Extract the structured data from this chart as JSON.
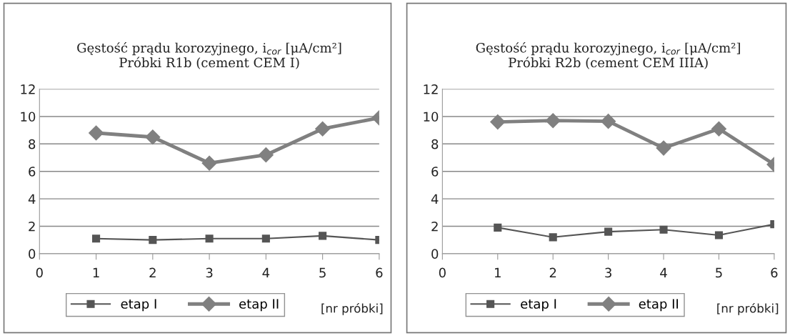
{
  "chart_data": [
    {
      "type": "line",
      "title": "Gęstość prądu korozyjnego, i$_{cor}$ [μA/cm²]\nPróbki R1b (cement CEM I)",
      "xlabel": "[nr próbki]",
      "x": [
        1,
        2,
        3,
        4,
        5,
        6
      ],
      "xlim": [
        0,
        6
      ],
      "xticks": [
        0,
        1,
        2,
        3,
        4,
        5,
        6
      ],
      "ylim": [
        0,
        12
      ],
      "yticks": [
        0,
        2,
        4,
        6,
        8,
        10,
        12
      ],
      "grid": "y",
      "legend": "bottom",
      "series": [
        {
          "name": "etap I",
          "color": "#555555",
          "marker": "square",
          "values": [
            1.1,
            1.0,
            1.1,
            1.1,
            1.3,
            1.0
          ]
        },
        {
          "name": "etap II",
          "color": "#808080",
          "marker": "diamond",
          "values": [
            8.8,
            8.5,
            6.6,
            7.2,
            9.1,
            9.9
          ]
        }
      ]
    },
    {
      "type": "line",
      "title": "Gęstość prądu korozyjnego, i$_{cor}$ [μA/cm²]\nPróbki R2b (cement CEM IIIA)",
      "xlabel": "[nr próbki]",
      "x": [
        1,
        2,
        3,
        4,
        5,
        6
      ],
      "xlim": [
        0,
        6
      ],
      "xticks": [
        0,
        1,
        2,
        3,
        4,
        5,
        6
      ],
      "ylim": [
        0,
        12
      ],
      "yticks": [
        0,
        2,
        4,
        6,
        8,
        10,
        12
      ],
      "grid": "y",
      "legend": "bottom",
      "series": [
        {
          "name": "etap I",
          "color": "#555555",
          "marker": "square",
          "values": [
            1.9,
            1.2,
            1.6,
            1.75,
            1.35,
            2.15
          ]
        },
        {
          "name": "etap II",
          "color": "#808080",
          "marker": "diamond",
          "values": [
            9.6,
            9.7,
            9.65,
            7.7,
            9.1,
            6.5
          ]
        }
      ]
    }
  ]
}
